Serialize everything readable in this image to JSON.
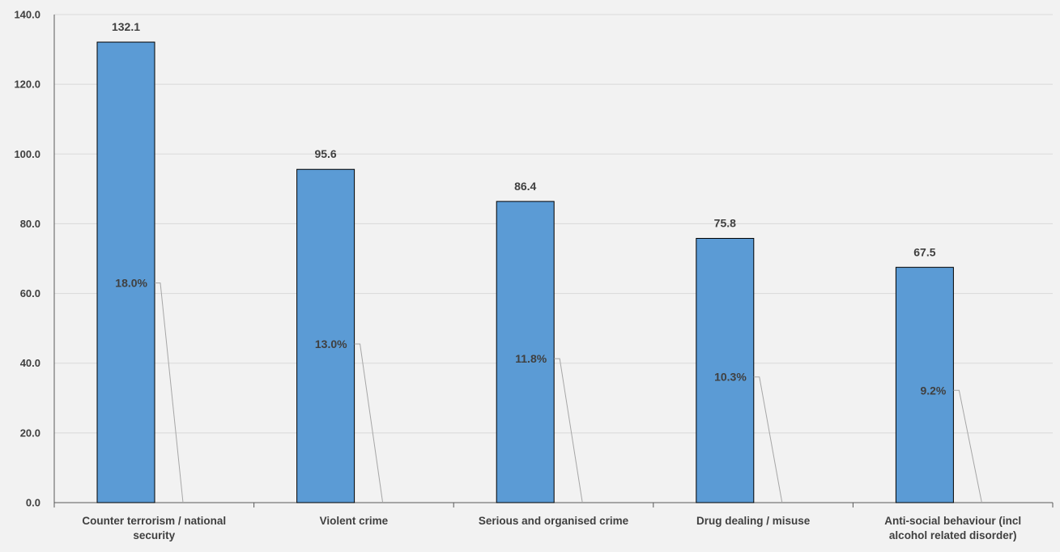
{
  "chart_data": {
    "type": "bar",
    "categories": [
      [
        "Counter terrorism / national",
        "security"
      ],
      [
        "Violent crime"
      ],
      [
        "Serious and organised crime"
      ],
      [
        "Drug dealing / misuse"
      ],
      [
        "Anti-social behaviour (incl",
        "alcohol related disorder)"
      ]
    ],
    "values": [
      132.1,
      95.6,
      86.4,
      75.8,
      67.5
    ],
    "value_labels": [
      "132.1",
      "95.6",
      "86.4",
      "75.8",
      "67.5"
    ],
    "share_labels": [
      "18.0%",
      "13.0%",
      "11.8%",
      "10.3%",
      "9.2%"
    ],
    "share_values": [
      18.0,
      13.0,
      11.8,
      10.3,
      9.2
    ],
    "ylim": [
      0,
      140
    ],
    "yticks": [
      "0.0",
      "20.0",
      "40.0",
      "60.0",
      "80.0",
      "100.0",
      "120.0",
      "140.0"
    ],
    "grid": true,
    "colors": {
      "bar": "#5b9bd5",
      "bar_border": "#000000",
      "grid": "#d9d9d9",
      "axis": "#595959",
      "leader": "#a6a6a6"
    }
  }
}
